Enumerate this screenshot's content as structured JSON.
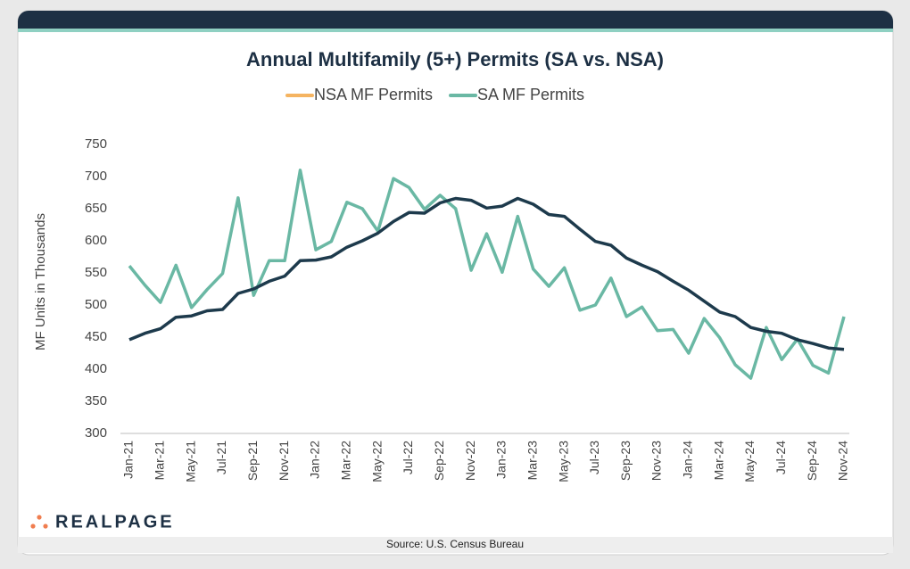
{
  "chart_data": {
    "type": "line",
    "title": "Annual Multifamily (5+) Permits (SA vs. NSA)",
    "y_label": "MF Units in Thousands",
    "source": "Source: U.S. Census Bureau",
    "brand": "REALPAGE",
    "categories": [
      "Jan-21",
      null,
      "Mar-21",
      null,
      "May-21",
      null,
      "Jul-21",
      null,
      "Sep-21",
      null,
      "Nov-21",
      null,
      "Jan-22",
      null,
      "Mar-22",
      null,
      "May-22",
      null,
      "Jul-22",
      null,
      "Sep-22",
      null,
      "Nov-22",
      null,
      "Jan-23",
      null,
      "Mar-23",
      null,
      "May-23",
      null,
      "Jul-23",
      null,
      "Sep-23",
      null,
      "Nov-23",
      null,
      "Jan-24",
      null,
      "Mar-24",
      null,
      "May-24",
      null,
      "Jul-24",
      null,
      "Sep-24",
      null,
      "Nov-24"
    ],
    "series": [
      {
        "name": "NSA MF Permits",
        "color": "#1d3a4c",
        "legend_color": "#f5b461",
        "values": [
          446,
          456,
          463,
          481,
          483,
          491,
          493,
          518,
          525,
          537,
          545,
          569,
          570,
          575,
          590,
          600,
          612,
          630,
          644,
          643,
          659,
          666,
          663,
          651,
          654,
          666,
          657,
          641,
          638,
          618,
          599,
          593,
          573,
          562,
          552,
          537,
          523,
          506,
          489,
          482,
          465,
          459,
          456,
          446,
          440,
          433,
          431
        ]
      },
      {
        "name": "SA MF Permits",
        "color": "#6ab8a4",
        "legend_color": "#6ab8a4",
        "values": [
          561,
          531,
          504,
          562,
          496,
          524,
          549,
          667,
          515,
          569,
          569,
          710,
          586,
          599,
          660,
          650,
          615,
          697,
          683,
          649,
          671,
          650,
          554,
          611,
          551,
          638,
          556,
          529,
          558,
          492,
          500,
          542,
          482,
          497,
          460,
          462,
          425,
          479,
          449,
          407,
          386,
          465,
          415,
          447,
          406,
          394,
          482
        ]
      }
    ],
    "ylim": [
      300,
      750
    ],
    "yticks": [
      300,
      350,
      400,
      450,
      500,
      550,
      600,
      650,
      700,
      750
    ],
    "grid": false
  }
}
